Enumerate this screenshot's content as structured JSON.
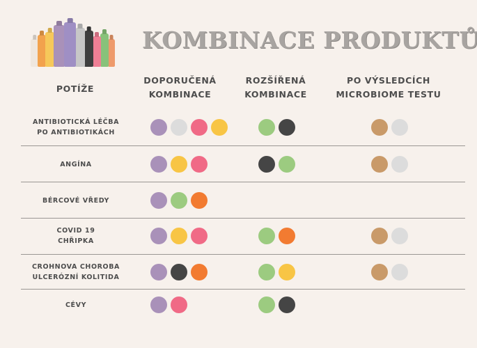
{
  "title": "KOMBINACE PRODUKTŮ",
  "columns": {
    "issues": "POTÍŽE",
    "recommended": "DOPORUČENÁ\nKOMBINACE",
    "extended": "ROZŠÍŘENÁ\nKOMBINACE",
    "microbiome": "PO VÝSLEDCÍCH\nMICROBIOME TESTU"
  },
  "colors": {
    "purple": "#a991b9",
    "light-gray": "#dcdcdc",
    "pink": "#f06a86",
    "yellow": "#f8c545",
    "green": "#9ccb80",
    "dark-gray": "#454545",
    "orange": "#f27b31",
    "tan": "#c99a69"
  },
  "rows": [
    {
      "label": "ANTIBIOTICKÁ LÉČBA\nPO ANTIBIOTIKÁCH",
      "recommended": [
        "purple",
        "light-gray",
        "pink",
        "yellow"
      ],
      "extended": [
        "green",
        "dark-gray"
      ],
      "microbiome": [
        "tan",
        "light-gray"
      ]
    },
    {
      "label": "ANGÍNA",
      "recommended": [
        "purple",
        "yellow",
        "pink"
      ],
      "extended": [
        "dark-gray",
        "green"
      ],
      "microbiome": [
        "tan",
        "light-gray"
      ]
    },
    {
      "label": "BÉRCOVÉ VŘEDY",
      "recommended": [
        "purple",
        "green",
        "orange"
      ],
      "extended": [],
      "microbiome": []
    },
    {
      "label": "COVID 19\nCHŘIPKA",
      "recommended": [
        "purple",
        "yellow",
        "pink"
      ],
      "extended": [
        "green",
        "orange"
      ],
      "microbiome": [
        "tan",
        "light-gray"
      ]
    },
    {
      "label": "CROHNOVA CHOROBA\nULCERÓZNÍ KOLITIDA",
      "recommended": [
        "purple",
        "dark-gray",
        "orange"
      ],
      "extended": [
        "green",
        "yellow"
      ],
      "microbiome": [
        "tan",
        "light-gray"
      ]
    },
    {
      "label": "CÉVY",
      "recommended": [
        "purple",
        "pink"
      ],
      "extended": [
        "green",
        "dark-gray"
      ],
      "microbiome": []
    }
  ],
  "product_bottles": [
    "#efe7de",
    "#f2a24d",
    "#f6c85a",
    "#a991b9",
    "#9f8fc4",
    "#c7c7c7",
    "#3f3f3f",
    "#ef7f95",
    "#88c27a",
    "#ee9a6b"
  ]
}
